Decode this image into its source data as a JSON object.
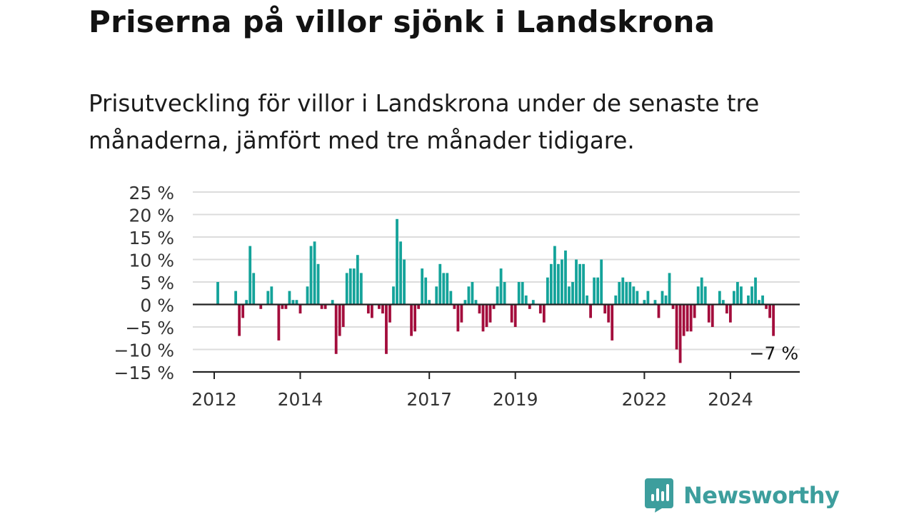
{
  "header": {
    "title": "Priserna på villor sjönk i Landskrona",
    "subtitle": "Prisutveckling för villor i Landskrona under de senaste tre månaderna, jämfört med tre månader tidigare."
  },
  "brand": {
    "name": "Newsworthy",
    "icon": "newsworthy-logo-icon",
    "color": "#3d9e9d"
  },
  "colors": {
    "positive": "#14a39a",
    "negative": "#a30d3c",
    "grid": "#dcdcdc",
    "axis": "#222222"
  },
  "chart_data": {
    "type": "bar",
    "ylim": [
      -15,
      25
    ],
    "y_ticks": [
      25,
      20,
      15,
      10,
      5,
      0,
      -5,
      -10,
      -15
    ],
    "y_tick_labels": [
      "25 %",
      "20 %",
      "15 %",
      "10 %",
      "5 %",
      "0 %",
      "−5 %",
      "−10 %",
      "−15 %"
    ],
    "x_tick_labels": [
      "2012",
      "2014",
      "2017",
      "2019",
      "2022",
      "2024"
    ],
    "x_tick_index": [
      0,
      24,
      60,
      84,
      120,
      144
    ],
    "grid": true,
    "last_value_label": "−7 %",
    "values": [
      0,
      5,
      0,
      0,
      0,
      0,
      3,
      -7,
      -3,
      1,
      13,
      7,
      0,
      -1,
      0,
      3,
      4,
      0,
      -8,
      -1,
      -1,
      3,
      1,
      1,
      -2,
      0,
      4,
      13,
      14,
      9,
      -1,
      -1,
      0,
      1,
      -11,
      -7,
      -5,
      7,
      8,
      8,
      11,
      7,
      0,
      -2,
      -3,
      0,
      -1,
      -2,
      -11,
      -4,
      4,
      19,
      14,
      10,
      0,
      -7,
      -6,
      -1,
      8,
      6,
      1,
      0,
      4,
      9,
      7,
      7,
      3,
      -1,
      -6,
      -4,
      1,
      4,
      5,
      1,
      -2,
      -6,
      -5,
      -4,
      -1,
      4,
      8,
      5,
      0,
      -4,
      -5,
      5,
      5,
      2,
      -1,
      1,
      0,
      -2,
      -4,
      6,
      9,
      13,
      9,
      10,
      12,
      4,
      5,
      10,
      9,
      9,
      2,
      -3,
      6,
      6,
      10,
      -2,
      -4,
      -8,
      2,
      5,
      6,
      5,
      5,
      4,
      3,
      0,
      1,
      3,
      0,
      1,
      -3,
      3,
      2,
      7,
      -1,
      -10,
      -13,
      -7,
      -6,
      -6,
      -3,
      4,
      6,
      4,
      -4,
      -5,
      0,
      3,
      1,
      -2,
      -4,
      3,
      5,
      4,
      0,
      2,
      4,
      6,
      1,
      2,
      -1,
      -3,
      -7
    ]
  }
}
